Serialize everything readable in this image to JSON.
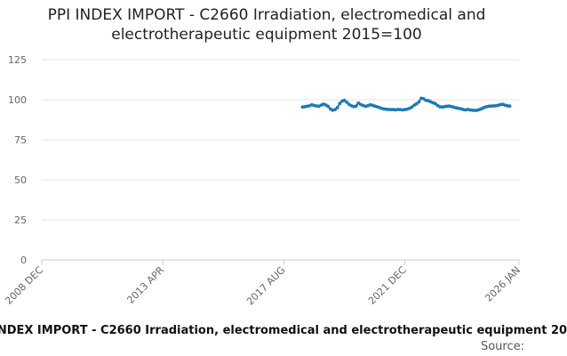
{
  "chart_data": {
    "type": "line",
    "title_lines": [
      "PPI INDEX IMPORT - C2660 Irradiation, electromedical and",
      "electrotherapeutic equipment 2015=100"
    ],
    "xlabel": "",
    "ylabel": "",
    "ylim": [
      0,
      125
    ],
    "y_ticks": [
      0,
      25,
      50,
      75,
      100,
      125
    ],
    "xlim": [
      "2008-12",
      "2026-01"
    ],
    "x_ticks": [
      {
        "date": "2008-12",
        "label": "2008 DEC"
      },
      {
        "date": "2013-04",
        "label": "2013 APR"
      },
      {
        "date": "2017-08",
        "label": "2017 AUG"
      },
      {
        "date": "2021-12",
        "label": "2021 DEC"
      },
      {
        "date": "2026-01",
        "label": "2026 JAN"
      }
    ],
    "grid": "horizontal",
    "legend": "none",
    "series": [
      {
        "color": "#1f77b4",
        "points": [
          [
            "2018-04",
            95.4
          ],
          [
            "2018-05",
            95.6
          ],
          [
            "2018-06",
            95.9
          ],
          [
            "2018-07",
            96.2
          ],
          [
            "2018-08",
            96.8
          ],
          [
            "2018-09",
            96.4
          ],
          [
            "2018-10",
            96.1
          ],
          [
            "2018-11",
            95.9
          ],
          [
            "2018-12",
            96.6
          ],
          [
            "2019-01",
            97.2
          ],
          [
            "2019-02",
            96.7
          ],
          [
            "2019-03",
            95.8
          ],
          [
            "2019-04",
            94.2
          ],
          [
            "2019-05",
            93.4
          ],
          [
            "2019-06",
            93.8
          ],
          [
            "2019-07",
            95.1
          ],
          [
            "2019-08",
            97.6
          ],
          [
            "2019-09",
            99.1
          ],
          [
            "2019-10",
            99.6
          ],
          [
            "2019-11",
            98.4
          ],
          [
            "2019-12",
            97.1
          ],
          [
            "2020-01",
            96.2
          ],
          [
            "2020-02",
            95.7
          ],
          [
            "2020-03",
            96.0
          ],
          [
            "2020-04",
            97.9
          ],
          [
            "2020-05",
            97.0
          ],
          [
            "2020-06",
            96.4
          ],
          [
            "2020-07",
            95.9
          ],
          [
            "2020-08",
            96.2
          ],
          [
            "2020-09",
            96.8
          ],
          [
            "2020-10",
            96.5
          ],
          [
            "2020-11",
            96.0
          ],
          [
            "2020-12",
            95.6
          ],
          [
            "2021-01",
            95.1
          ],
          [
            "2021-02",
            94.6
          ],
          [
            "2021-03",
            94.2
          ],
          [
            "2021-04",
            94.0
          ],
          [
            "2021-05",
            93.9
          ],
          [
            "2021-06",
            93.8
          ],
          [
            "2021-07",
            93.8
          ],
          [
            "2021-08",
            93.7
          ],
          [
            "2021-09",
            93.9
          ],
          [
            "2021-10",
            93.8
          ],
          [
            "2021-11",
            93.6
          ],
          [
            "2021-12",
            93.8
          ],
          [
            "2022-01",
            94.1
          ],
          [
            "2022-02",
            94.6
          ],
          [
            "2022-03",
            95.4
          ],
          [
            "2022-04",
            96.6
          ],
          [
            "2022-05",
            97.4
          ],
          [
            "2022-06",
            98.6
          ],
          [
            "2022-07",
            100.9
          ],
          [
            "2022-08",
            100.6
          ],
          [
            "2022-09",
            99.6
          ],
          [
            "2022-10",
            99.4
          ],
          [
            "2022-11",
            98.7
          ],
          [
            "2022-12",
            98.1
          ],
          [
            "2023-01",
            97.6
          ],
          [
            "2023-02",
            96.4
          ],
          [
            "2023-03",
            95.6
          ],
          [
            "2023-04",
            95.4
          ],
          [
            "2023-05",
            95.6
          ],
          [
            "2023-06",
            95.9
          ],
          [
            "2023-07",
            96.0
          ],
          [
            "2023-08",
            95.7
          ],
          [
            "2023-09",
            95.3
          ],
          [
            "2023-10",
            94.9
          ],
          [
            "2023-11",
            94.6
          ],
          [
            "2023-12",
            94.3
          ],
          [
            "2024-01",
            93.9
          ],
          [
            "2024-02",
            93.6
          ],
          [
            "2024-03",
            93.9
          ],
          [
            "2024-04",
            93.6
          ],
          [
            "2024-05",
            93.4
          ],
          [
            "2024-06",
            93.3
          ],
          [
            "2024-07",
            93.4
          ],
          [
            "2024-08",
            93.8
          ],
          [
            "2024-09",
            94.4
          ],
          [
            "2024-10",
            95.1
          ],
          [
            "2024-11",
            95.6
          ],
          [
            "2024-12",
            95.9
          ],
          [
            "2025-01",
            96.0
          ],
          [
            "2025-02",
            96.1
          ],
          [
            "2025-03",
            96.2
          ],
          [
            "2025-04",
            96.5
          ],
          [
            "2025-05",
            96.9
          ],
          [
            "2025-06",
            97.1
          ],
          [
            "2025-07",
            96.6
          ],
          [
            "2025-08",
            96.2
          ],
          [
            "2025-09",
            96.0
          ]
        ]
      }
    ]
  },
  "footer": {
    "bottom_text": "INDEX IMPORT - C2660 Irradiation, electromedical and electrotherapeutic equipment 20",
    "source_text": "Source:"
  }
}
